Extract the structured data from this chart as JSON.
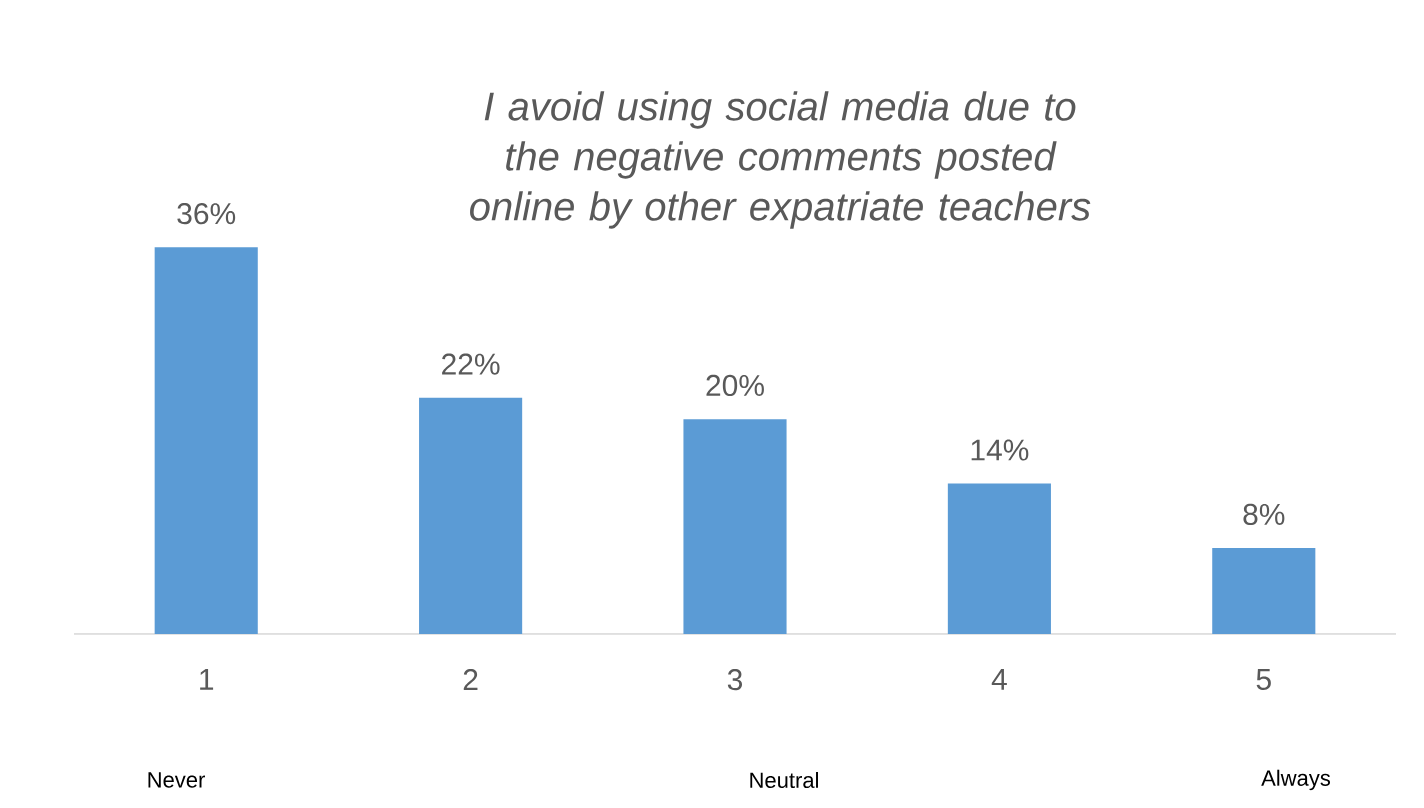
{
  "chart_data": {
    "type": "bar",
    "title": "I avoid using social media due to the negative comments posted online by other expatriate teachers",
    "categories": [
      "1",
      "2",
      "3",
      "4",
      "5"
    ],
    "values": [
      36,
      22,
      20,
      14,
      8
    ],
    "value_labels": [
      "36%",
      "22%",
      "20%",
      "14%",
      "8%"
    ],
    "color": "#5b9bd5",
    "annotations": [
      "Never",
      "Neutral",
      "Always"
    ]
  }
}
